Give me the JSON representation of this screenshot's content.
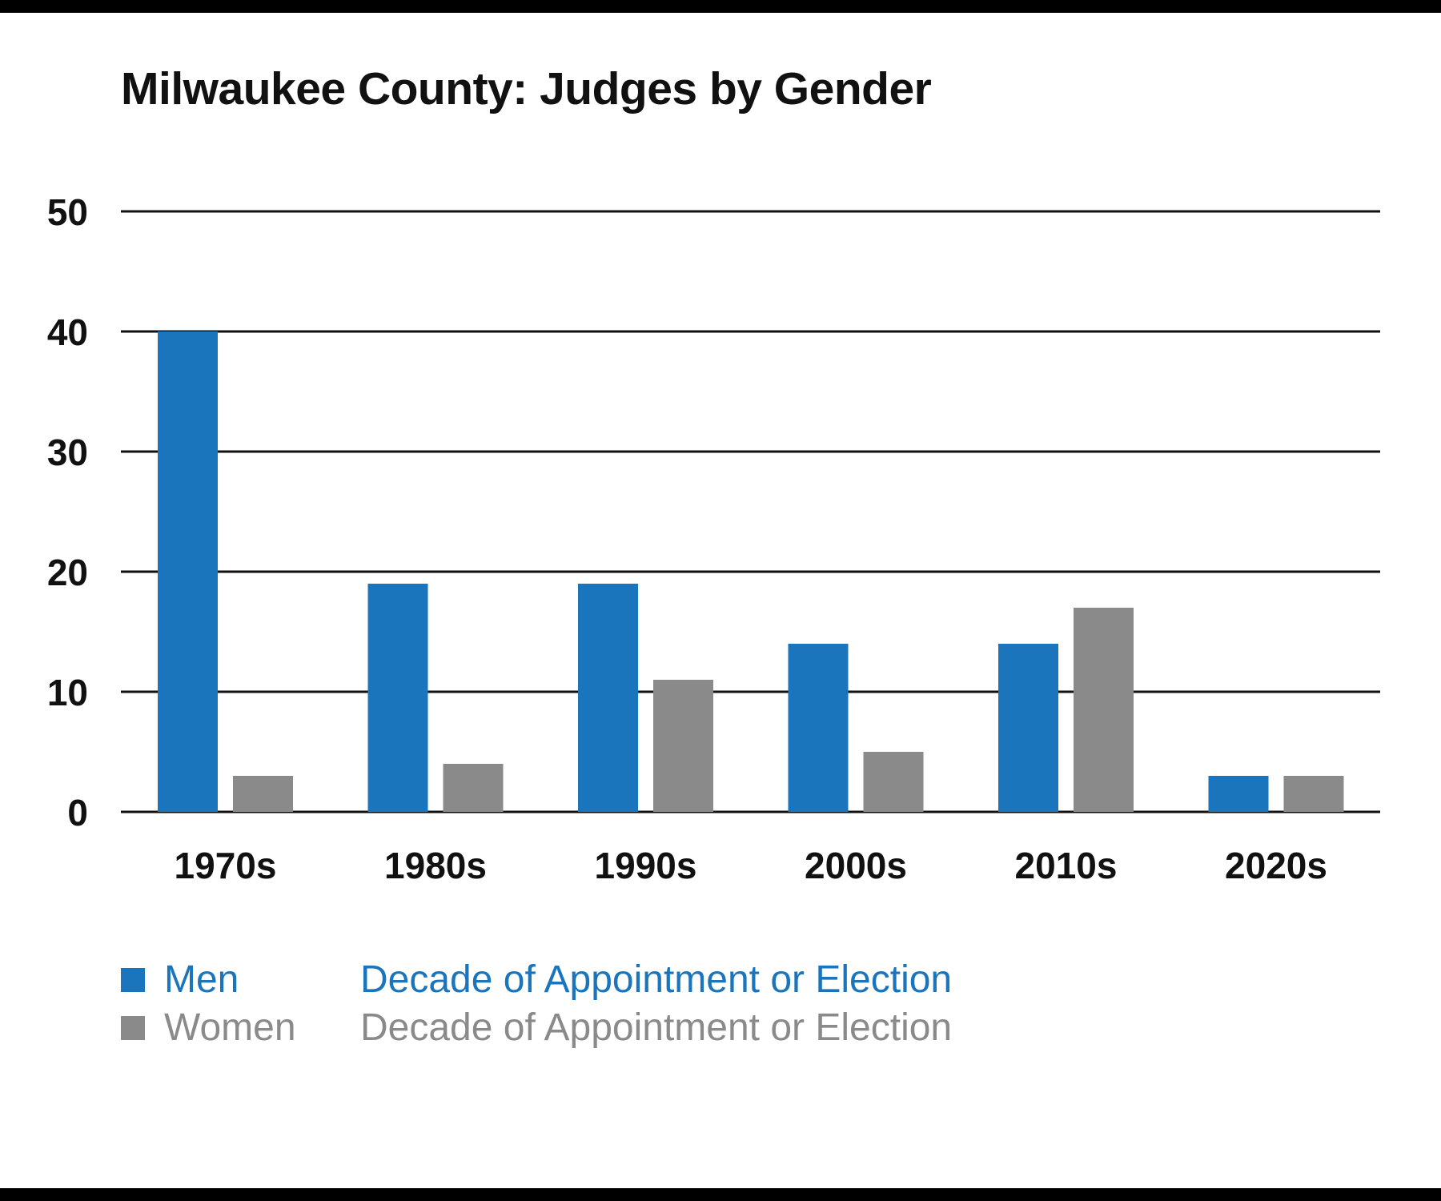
{
  "colors": {
    "men": "#1a75bc",
    "women": "#8a8a8a",
    "grid": "#111111",
    "text": "#111111"
  },
  "chart_data": {
    "type": "bar",
    "title": "Milwaukee County: Judges by Gender",
    "categories": [
      "1970s",
      "1980s",
      "1990s",
      "2000s",
      "2010s",
      "2020s"
    ],
    "series": [
      {
        "name": "Men",
        "values": [
          40,
          19,
          19,
          14,
          14,
          3
        ]
      },
      {
        "name": "Women",
        "values": [
          3,
          4,
          11,
          5,
          17,
          3
        ]
      }
    ],
    "yticks": [
      "0",
      "10",
      "20",
      "30",
      "40",
      "50"
    ],
    "ylim": [
      0,
      50
    ],
    "grid": true,
    "legend_position": "bottom-left",
    "legend": [
      {
        "label": "Men",
        "description": "Decade of Appointment or Election"
      },
      {
        "label": "Women",
        "description": "Decade of Appointment or Election"
      }
    ]
  }
}
